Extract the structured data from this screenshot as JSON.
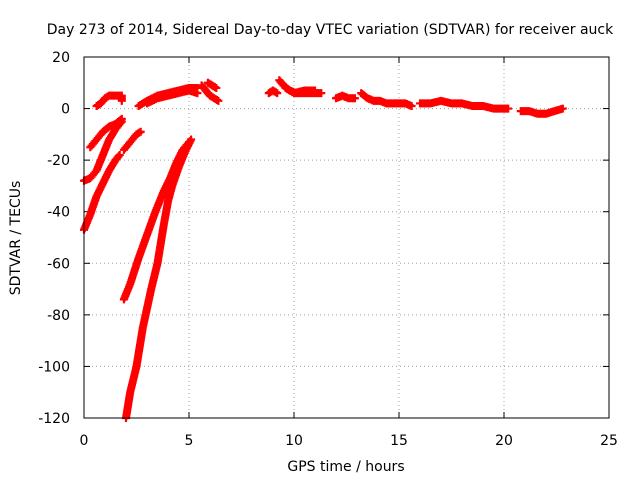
{
  "chart_data": {
    "type": "scatter",
    "title": "Day 273 of 2014, Sidereal Day-to-day VTEC variation (SDTVAR) for receiver auck",
    "xlabel": "GPS time / hours",
    "ylabel": "SDTVAR / TECUs",
    "xlim": [
      0,
      25
    ],
    "ylim": [
      -120,
      20
    ],
    "xticks": [
      0,
      5,
      10,
      15,
      20,
      25
    ],
    "yticks": [
      -120,
      -100,
      -80,
      -60,
      -40,
      -20,
      0,
      20
    ],
    "xtick_labels": [
      "0",
      "5",
      "10",
      "15",
      "20",
      "25"
    ],
    "ytick_labels": [
      "-120",
      "-100",
      "-80",
      "-60",
      "-40",
      "-20",
      "0",
      "20"
    ],
    "grid": true,
    "marker": "plus",
    "color": "#ff0000",
    "series": [
      {
        "segments": [
          [
            [
              0.6,
              1
            ],
            [
              0.8,
              2
            ],
            [
              1.0,
              4
            ],
            [
              1.2,
              5
            ],
            [
              1.5,
              5
            ],
            [
              1.8,
              5
            ],
            [
              1.8,
              3
            ]
          ],
          [
            [
              2.0,
              -120
            ],
            [
              2.2,
              -110
            ],
            [
              2.5,
              -100
            ],
            [
              2.8,
              -85
            ],
            [
              3.2,
              -70
            ],
            [
              3.5,
              -60
            ],
            [
              3.8,
              -45
            ],
            [
              4.0,
              -36
            ],
            [
              4.2,
              -30
            ],
            [
              4.5,
              -23
            ],
            [
              4.8,
              -17
            ],
            [
              5.1,
              -12
            ]
          ],
          [
            [
              1.9,
              -74
            ],
            [
              2.2,
              -68
            ],
            [
              2.6,
              -58
            ],
            [
              3.0,
              -49
            ],
            [
              3.4,
              -40
            ],
            [
              3.8,
              -32
            ],
            [
              4.1,
              -27
            ],
            [
              4.4,
              -21
            ],
            [
              4.7,
              -16
            ],
            [
              5.0,
              -13
            ]
          ],
          [
            [
              0.0,
              -47
            ],
            [
              0.3,
              -41
            ],
            [
              0.6,
              -34
            ],
            [
              0.9,
              -29
            ],
            [
              1.2,
              -24
            ],
            [
              1.5,
              -20
            ],
            [
              1.7,
              -18
            ]
          ],
          [
            [
              0.0,
              -28
            ],
            [
              0.3,
              -27
            ],
            [
              0.6,
              -24
            ],
            [
              0.9,
              -18
            ],
            [
              1.2,
              -12
            ],
            [
              1.5,
              -8
            ],
            [
              1.8,
              -5
            ]
          ],
          [
            [
              0.3,
              -15
            ],
            [
              0.6,
              -12
            ],
            [
              0.9,
              -9
            ],
            [
              1.2,
              -7
            ],
            [
              1.5,
              -6
            ],
            [
              1.8,
              -4
            ]
          ],
          [
            [
              1.9,
              -16
            ],
            [
              2.2,
              -13
            ],
            [
              2.5,
              -10
            ],
            [
              2.7,
              -9
            ]
          ],
          [
            [
              2.6,
              1
            ],
            [
              3.0,
              3
            ],
            [
              3.5,
              5
            ],
            [
              4.0,
              6
            ],
            [
              4.5,
              7
            ],
            [
              5.0,
              8
            ],
            [
              5.4,
              8
            ]
          ],
          [
            [
              3.0,
              2
            ],
            [
              3.5,
              4
            ],
            [
              4.0,
              5
            ],
            [
              4.5,
              6
            ],
            [
              5.0,
              7
            ],
            [
              5.4,
              6
            ]
          ],
          [
            [
              5.6,
              9
            ],
            [
              5.8,
              7
            ],
            [
              6.0,
              5
            ],
            [
              6.2,
              4
            ],
            [
              6.4,
              3
            ]
          ],
          [
            [
              5.9,
              10
            ],
            [
              6.1,
              9
            ],
            [
              6.3,
              8
            ]
          ],
          [
            [
              8.8,
              6
            ],
            [
              9.0,
              7
            ],
            [
              9.2,
              6
            ]
          ],
          [
            [
              9.3,
              11
            ],
            [
              9.5,
              9
            ],
            [
              9.8,
              7
            ],
            [
              10.1,
              6
            ],
            [
              10.4,
              6
            ],
            [
              10.7,
              6
            ],
            [
              11.0,
              6
            ],
            [
              11.3,
              6
            ]
          ],
          [
            [
              9.6,
              8
            ],
            [
              10.0,
              6
            ],
            [
              10.5,
              7
            ],
            [
              11.0,
              7
            ]
          ],
          [
            [
              12.0,
              4
            ],
            [
              12.3,
              5
            ],
            [
              12.6,
              4
            ],
            [
              12.9,
              4
            ]
          ],
          [
            [
              13.2,
              6
            ],
            [
              13.5,
              4
            ],
            [
              13.8,
              3
            ],
            [
              14.1,
              3
            ],
            [
              14.4,
              2
            ],
            [
              14.7,
              2
            ],
            [
              15.0,
              2
            ],
            [
              15.3,
              2
            ],
            [
              15.6,
              1
            ]
          ],
          [
            [
              16.0,
              2
            ],
            [
              16.5,
              2
            ],
            [
              17.0,
              3
            ],
            [
              17.5,
              2
            ],
            [
              18.0,
              2
            ],
            [
              18.5,
              1
            ],
            [
              19.0,
              1
            ],
            [
              19.5,
              0
            ],
            [
              20.0,
              0
            ],
            [
              20.2,
              0
            ]
          ],
          [
            [
              20.8,
              -1
            ],
            [
              21.2,
              -1
            ],
            [
              21.6,
              -2
            ],
            [
              22.0,
              -2
            ],
            [
              22.4,
              -1
            ],
            [
              22.8,
              0
            ]
          ]
        ]
      }
    ]
  }
}
